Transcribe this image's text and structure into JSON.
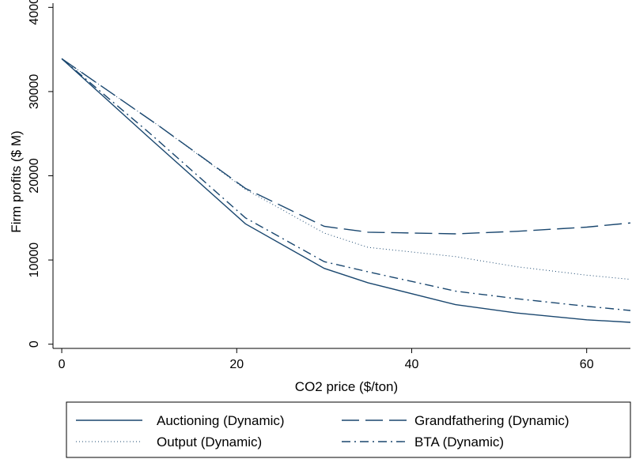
{
  "chart_data": {
    "type": "line",
    "xlabel": "CO2 price ($/ton)",
    "ylabel": "Firm profits ($ M)",
    "xlim": [
      -1,
      65
    ],
    "ylim": [
      -500,
      40500
    ],
    "xticks": [
      0,
      20,
      40,
      60
    ],
    "yticks": [
      0,
      10000,
      20000,
      30000,
      40000
    ],
    "grid": false,
    "legend_position": "bottom",
    "series": [
      {
        "name": "Auctioning (Dynamic)",
        "style": "solid",
        "color": "#1a476f",
        "points": [
          [
            0,
            33900
          ],
          [
            10,
            24500
          ],
          [
            21,
            14300
          ],
          [
            30,
            9000
          ],
          [
            35,
            7300
          ],
          [
            45,
            4700
          ],
          [
            52,
            3700
          ],
          [
            60,
            2900
          ],
          [
            65,
            2600
          ]
        ]
      },
      {
        "name": "Grandfathering (Dynamic)",
        "style": "longdash",
        "color": "#1a476f",
        "points": [
          [
            0,
            33900
          ],
          [
            11,
            26000
          ],
          [
            21,
            18500
          ],
          [
            30,
            14000
          ],
          [
            35,
            13300
          ],
          [
            45,
            13100
          ],
          [
            52,
            13400
          ],
          [
            60,
            13900
          ],
          [
            65,
            14400
          ]
        ]
      },
      {
        "name": "Output (Dynamic)",
        "style": "dotted",
        "color": "#1a476f",
        "points": [
          [
            0,
            33900
          ],
          [
            11,
            26000
          ],
          [
            21,
            18400
          ],
          [
            30,
            13200
          ],
          [
            35,
            11500
          ],
          [
            45,
            10400
          ],
          [
            52,
            9200
          ],
          [
            60,
            8200
          ],
          [
            65,
            7700
          ]
        ]
      },
      {
        "name": "BTA (Dynamic)",
        "style": "dashdot",
        "color": "#1a476f",
        "points": [
          [
            0,
            33900
          ],
          [
            10,
            25100
          ],
          [
            21,
            15000
          ],
          [
            30,
            9800
          ],
          [
            35,
            8600
          ],
          [
            45,
            6300
          ],
          [
            52,
            5400
          ],
          [
            60,
            4500
          ],
          [
            65,
            4000
          ]
        ]
      }
    ]
  }
}
